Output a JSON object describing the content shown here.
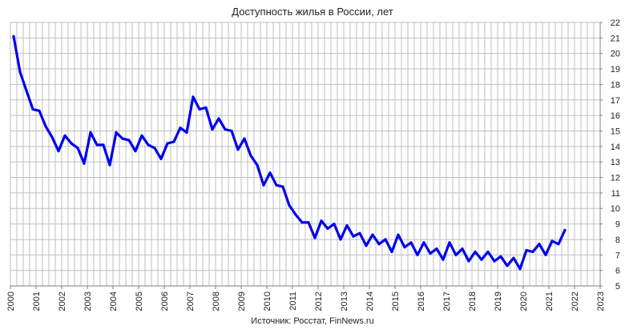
{
  "chart_data": {
    "type": "line",
    "title": "Доступность жилья в России, лет",
    "source": "Источник: Росстат, FinNews.ru",
    "xlabel": "",
    "ylabel": "",
    "ylim": [
      5,
      22
    ],
    "y_ticks": [
      "5",
      "6",
      "7",
      "8",
      "9",
      "10",
      "11",
      "12",
      "13",
      "14",
      "15",
      "16",
      "17",
      "18",
      "19",
      "20",
      "21",
      "22"
    ],
    "xlim": [
      2000,
      2023
    ],
    "x_ticks": [
      "2000",
      "2001",
      "2002",
      "2003",
      "2004",
      "2005",
      "2006",
      "2007",
      "2008",
      "2009",
      "2010",
      "2011",
      "2012",
      "2013",
      "2014",
      "2015",
      "2016",
      "2017",
      "2018",
      "2019",
      "2020",
      "2021",
      "2022",
      "2023"
    ],
    "y_axis_side": "right",
    "grid": true,
    "legend": "none",
    "colors": {
      "line": "#0000ee",
      "grid": "#bfbfbf",
      "axis": "#7f7f7f"
    },
    "series": [
      {
        "x": [
          2000.125,
          2000.375,
          2000.625,
          2000.875,
          2001.125,
          2001.375,
          2001.625,
          2001.875,
          2002.125,
          2002.375,
          2002.625,
          2002.875,
          2003.125,
          2003.375,
          2003.625,
          2003.875,
          2004.125,
          2004.375,
          2004.625,
          2004.875,
          2005.125,
          2005.375,
          2005.625,
          2005.875,
          2006.125,
          2006.375,
          2006.625,
          2006.875,
          2007.125,
          2007.375,
          2007.625,
          2007.875,
          2008.125,
          2008.375,
          2008.625,
          2008.875,
          2009.125,
          2009.375,
          2009.625,
          2009.875,
          2010.125,
          2010.375,
          2010.625,
          2010.875,
          2011.125,
          2011.375,
          2011.625,
          2011.875,
          2012.125,
          2012.375,
          2012.625,
          2012.875,
          2013.125,
          2013.375,
          2013.625,
          2013.875,
          2014.125,
          2014.375,
          2014.625,
          2014.875,
          2015.125,
          2015.375,
          2015.625,
          2015.875,
          2016.125,
          2016.375,
          2016.625,
          2016.875,
          2017.125,
          2017.375,
          2017.625,
          2017.875,
          2018.125,
          2018.375,
          2018.625,
          2018.875,
          2019.125,
          2019.375,
          2019.625,
          2019.875,
          2020.125,
          2020.375,
          2020.625,
          2020.875,
          2021.125,
          2021.375,
          2021.625
        ],
        "values": [
          21.1,
          18.8,
          17.6,
          16.4,
          16.3,
          15.3,
          14.6,
          13.7,
          14.7,
          14.2,
          13.9,
          12.9,
          14.9,
          14.1,
          14.1,
          12.8,
          14.9,
          14.5,
          14.4,
          13.7,
          14.7,
          14.1,
          13.9,
          13.2,
          14.2,
          14.3,
          15.2,
          14.9,
          17.2,
          16.4,
          16.5,
          15.1,
          15.8,
          15.1,
          15.0,
          13.8,
          14.5,
          13.4,
          12.8,
          11.5,
          12.3,
          11.5,
          11.4,
          10.2,
          9.6,
          9.1,
          9.1,
          8.1,
          9.2,
          8.7,
          9.0,
          8.0,
          8.9,
          8.2,
          8.4,
          7.6,
          8.3,
          7.7,
          8.0,
          7.2,
          8.3,
          7.5,
          7.8,
          7.0,
          7.8,
          7.1,
          7.4,
          6.7,
          7.8,
          7.0,
          7.4,
          6.6,
          7.2,
          6.7,
          7.2,
          6.6,
          6.9,
          6.3,
          6.8,
          6.1,
          7.3,
          7.2,
          7.7,
          7.0,
          7.9,
          7.7,
          8.6
        ]
      }
    ]
  }
}
